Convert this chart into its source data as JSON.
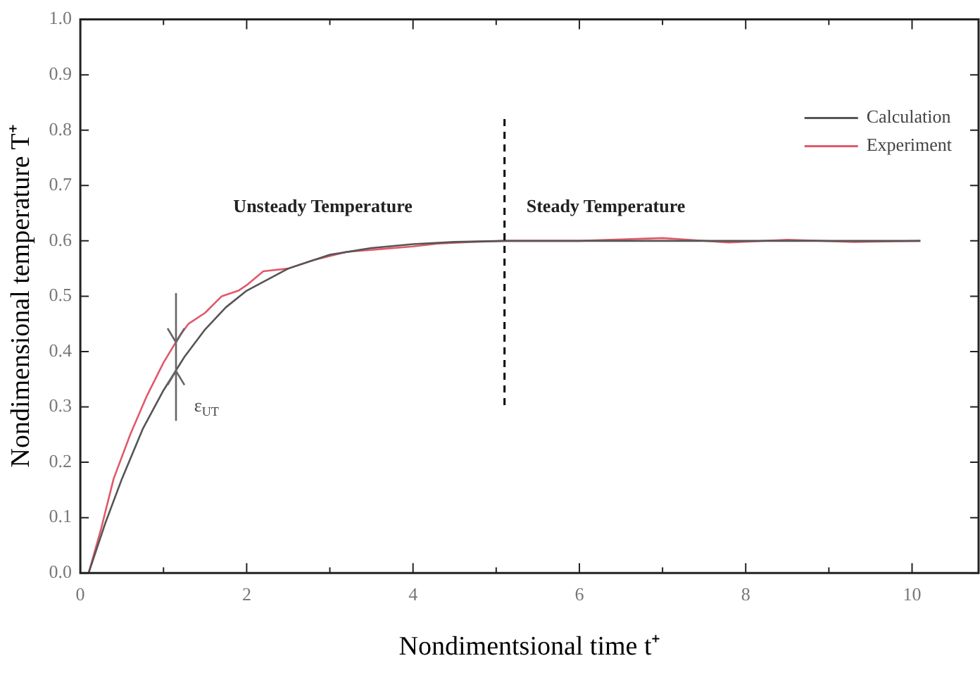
{
  "chart_data": {
    "type": "line",
    "xlabel": "Nondimentsional time t⁺",
    "ylabel": "Nondimensional temperature T⁺",
    "xlim": [
      0,
      10.8
    ],
    "ylim": [
      0,
      1
    ],
    "xticks": [
      0,
      {
        "value": 1,
        "label": null
      },
      2,
      {
        "value": 3,
        "label": null
      },
      4,
      {
        "value": 5,
        "label": null
      },
      6,
      {
        "value": 7,
        "label": null
      },
      8,
      {
        "value": 9,
        "label": null
      },
      10
    ],
    "yticks": [
      {
        "value": 0,
        "label": "0.0"
      },
      {
        "value": 0.1,
        "label": "0.1"
      },
      {
        "value": 0.2,
        "label": "0.2"
      },
      {
        "value": 0.3,
        "label": "0.3"
      },
      {
        "value": 0.4,
        "label": "0.4"
      },
      {
        "value": 0.5,
        "label": "0.5"
      },
      {
        "value": 0.6,
        "label": "0.6"
      },
      {
        "value": 0.7,
        "label": "0.7"
      },
      {
        "value": 0.8,
        "label": "0.8"
      },
      {
        "value": 0.9,
        "label": "0.9"
      },
      {
        "value": 1,
        "label": "1.0"
      }
    ],
    "grid": false,
    "legend": "top right",
    "marker": "none",
    "line_style": "solid",
    "series": [
      {
        "name": "Calculation",
        "color": "#555555",
        "x": [
          0.1,
          0.3,
          0.5,
          0.75,
          1,
          1.25,
          1.5,
          1.75,
          2,
          2.5,
          3,
          3.5,
          4,
          4.5,
          5.1,
          6,
          7,
          8,
          9,
          10.1
        ],
        "values": [
          0,
          0.09,
          0.17,
          0.26,
          0.33,
          0.39,
          0.44,
          0.48,
          0.51,
          0.55,
          0.575,
          0.587,
          0.594,
          0.598,
          0.6,
          0.6,
          0.6,
          0.6,
          0.6,
          0.6
        ]
      },
      {
        "name": "Experiment",
        "color": "#e05a6a",
        "x": [
          0.1,
          0.25,
          0.4,
          0.6,
          0.8,
          1,
          1.2,
          1.3,
          1.5,
          1.7,
          1.9,
          2,
          2.2,
          2.5,
          2.8,
          3.2,
          3.6,
          4,
          4.3,
          4.7,
          5.1,
          6,
          7,
          7.8,
          8.5,
          9.3,
          10.1
        ],
        "values": [
          0,
          0.08,
          0.17,
          0.25,
          0.32,
          0.38,
          0.43,
          0.45,
          0.47,
          0.5,
          0.51,
          0.52,
          0.545,
          0.55,
          0.565,
          0.58,
          0.585,
          0.59,
          0.595,
          0.598,
          0.6,
          0.6,
          0.605,
          0.597,
          0.602,
          0.598,
          0.6
        ]
      }
    ],
    "ref_lines": [
      {
        "axis": "x",
        "value": 5.1,
        "label": null,
        "line_style": "dashed",
        "color": "#000000"
      }
    ],
    "annotations": [
      "Unsteady Temperature",
      "Steady Temperature",
      "ε$_{UT}$"
    ]
  }
}
